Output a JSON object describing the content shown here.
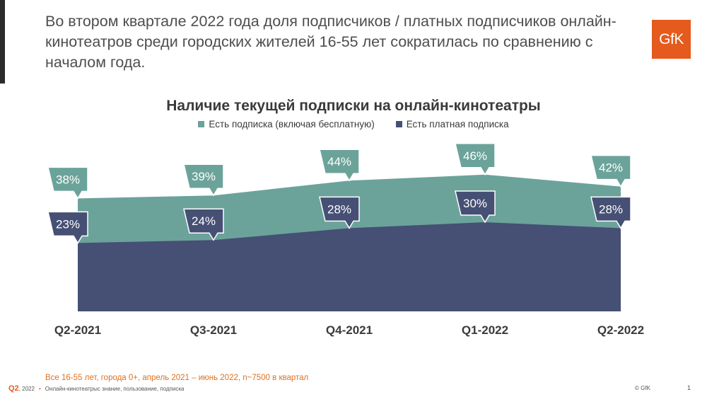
{
  "headline": "Во втором квартале 2022 года доля подписчиков / платных подписчиков онлайн-кинотеатров среди городских жителей 16-55 лет сократилась по сравнению с началом года.",
  "logo_text": "GfK",
  "colors": {
    "teal": "#6ba39a",
    "navy": "#464f74",
    "orange": "#e55a1d"
  },
  "chart_data": {
    "type": "area",
    "title": "Наличие текущей подписки на онлайн-кинотеатры",
    "categories": [
      "Q2-2021",
      "Q3-2021",
      "Q4-2021",
      "Q1-2022",
      "Q2-2022"
    ],
    "series": [
      {
        "name": "Есть подписка (включая бесплатную)",
        "values": [
          38,
          39,
          44,
          46,
          42
        ],
        "labels": [
          "38%",
          "39%",
          "44%",
          "46%",
          "42%"
        ],
        "color": "#6ba39a"
      },
      {
        "name": "Есть платная подписка",
        "values": [
          23,
          24,
          28,
          30,
          28
        ],
        "labels": [
          "23%",
          "24%",
          "28%",
          "30%",
          "28%"
        ],
        "color": "#464f74"
      }
    ],
    "ylim": [
      0,
      50
    ],
    "legend": "top-center"
  },
  "footer": {
    "note": "Все 16-55 лет, города 0+, апрель 2021 – июнь 2022, n~7500 в квартал",
    "quarter": "Q2",
    "year": ", 2022",
    "bullet": "•",
    "section": "Онлайн-кинотеатрыс знание, пользование, подписка",
    "copyright": "© GfK",
    "page": "1"
  }
}
